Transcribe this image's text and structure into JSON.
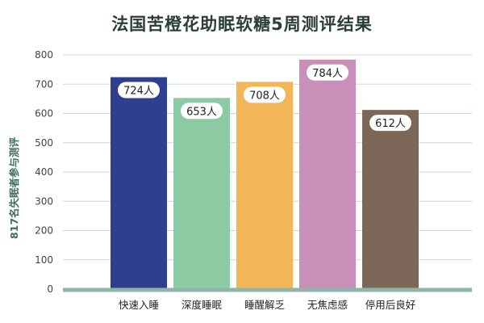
{
  "chart_data": {
    "type": "bar",
    "title": "法国苦橙花助眠软糖5周测评结果",
    "ylabel": "817名失眠者参与测评",
    "xlabel": "",
    "categories": [
      "快速入睡",
      "深度睡眠",
      "睡醒解乏",
      "无焦虑感",
      "停用后良好"
    ],
    "values": [
      724,
      653,
      708,
      784,
      612
    ],
    "value_labels": [
      "724人",
      "653人",
      "708人",
      "784人",
      "612人"
    ],
    "colors": [
      "#2f3f8f",
      "#8ccaa3",
      "#f2b558",
      "#c98fb8",
      "#7b6657"
    ],
    "ylim": [
      0,
      800
    ],
    "yticks": [
      0,
      100,
      200,
      300,
      400,
      500,
      600,
      700,
      800
    ],
    "ytick_labels": [
      "0",
      "100",
      "200",
      "300",
      "400",
      "500",
      "600",
      "700",
      "800"
    ],
    "grid": true,
    "axis_color": "#8fb5a8"
  }
}
